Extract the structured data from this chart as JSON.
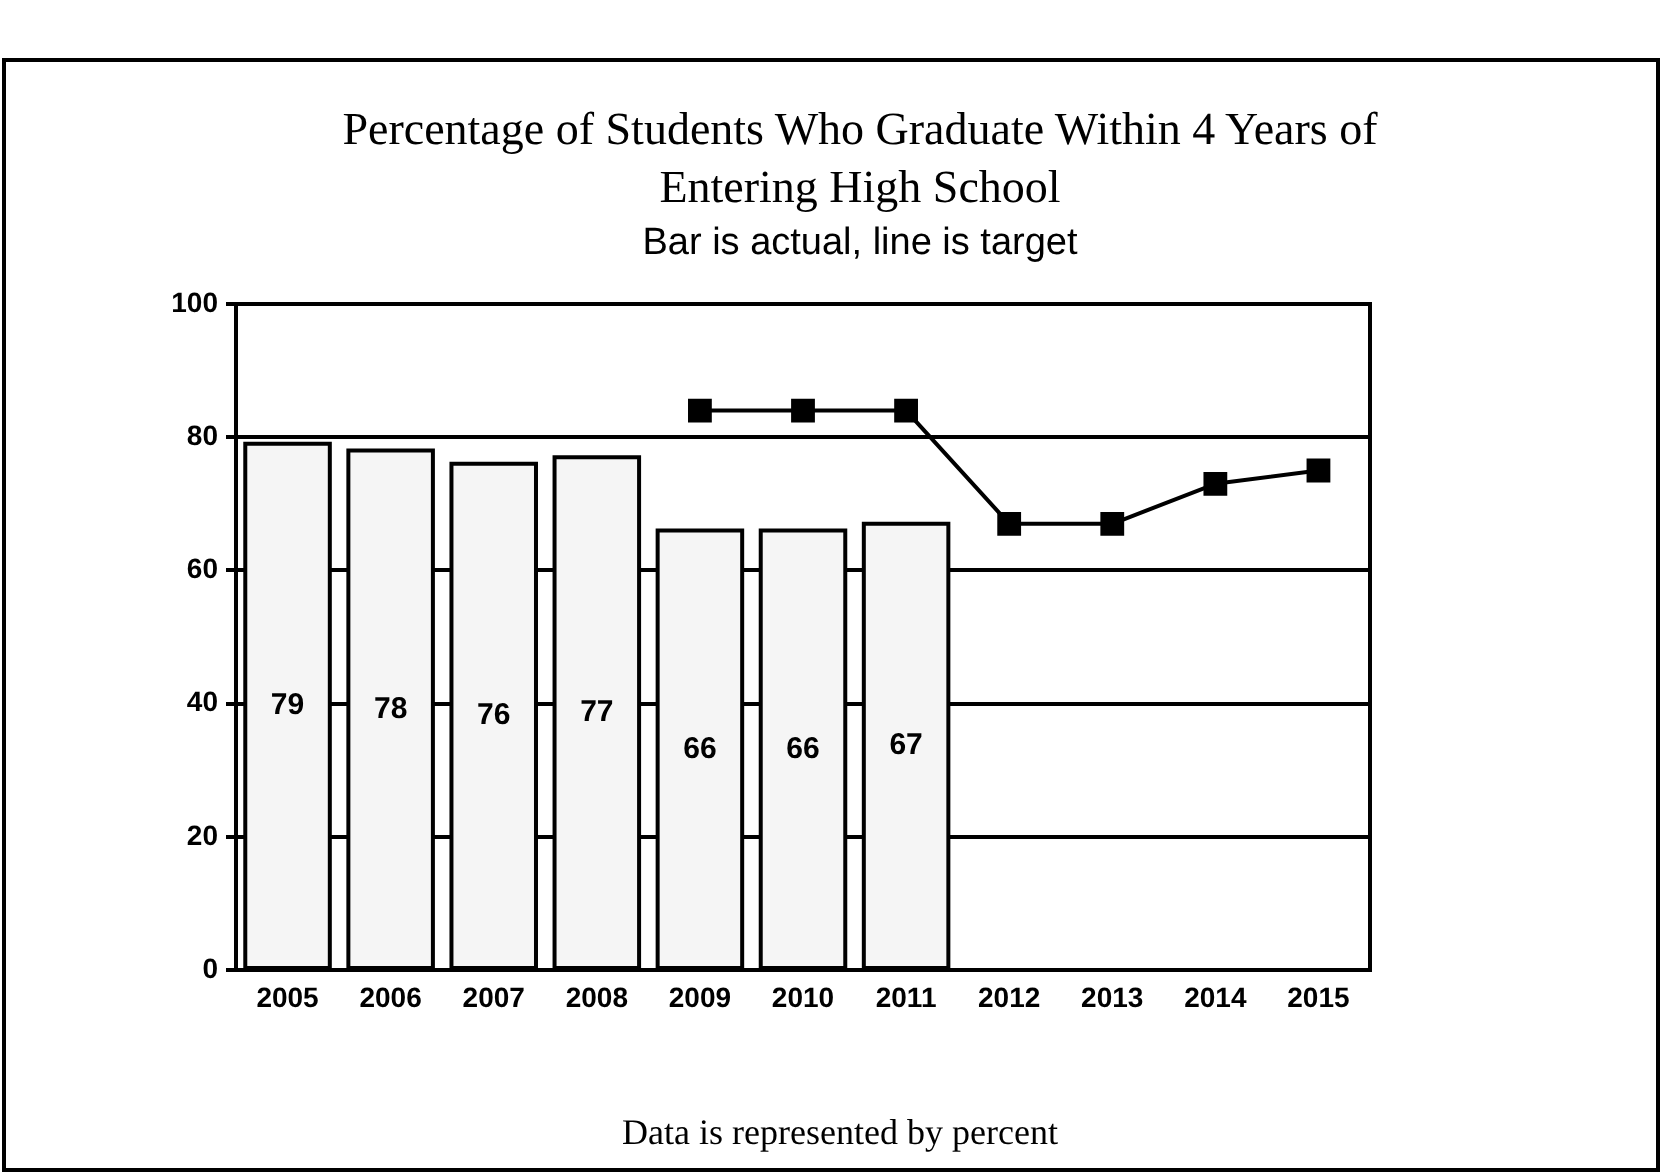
{
  "chart_data": {
    "type": "bar",
    "title": "Percentage of Students Who Graduate Within 4 Years of Entering High School",
    "subtitle": "Bar is actual, line is target",
    "annotations": [
      "Data is represented by percent"
    ],
    "categories": [
      "2005",
      "2006",
      "2007",
      "2008",
      "2009",
      "2010",
      "2011",
      "2012",
      "2013",
      "2014",
      "2015"
    ],
    "series": [
      {
        "color": "#f5f5f5",
        "values": [
          79,
          78,
          76,
          77,
          66,
          66,
          67,
          null,
          null,
          null,
          null
        ],
        "value_labels": [
          "79",
          "78",
          "76",
          "77",
          "66",
          "66",
          "67",
          null,
          null,
          null,
          null
        ]
      },
      {
        "type": "line",
        "color": "#000000",
        "values": [
          null,
          null,
          null,
          null,
          84,
          84,
          84,
          67,
          67,
          73,
          75
        ]
      }
    ],
    "ylim": [
      0,
      100
    ],
    "yticks": [
      0,
      20,
      40,
      60,
      80,
      100
    ],
    "grid": "y",
    "marker": "square"
  }
}
